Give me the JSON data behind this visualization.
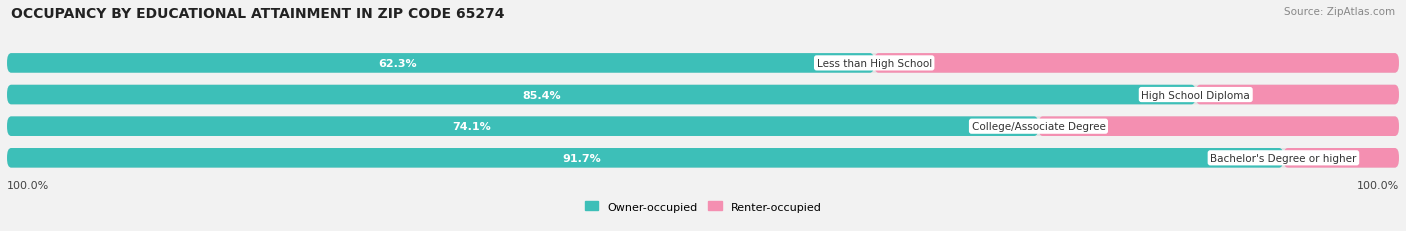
{
  "title": "OCCUPANCY BY EDUCATIONAL ATTAINMENT IN ZIP CODE 65274",
  "source": "Source: ZipAtlas.com",
  "categories": [
    "Less than High School",
    "High School Diploma",
    "College/Associate Degree",
    "Bachelor's Degree or higher"
  ],
  "owner_values": [
    62.3,
    85.4,
    74.1,
    91.7
  ],
  "renter_values": [
    37.7,
    14.6,
    25.9,
    8.3
  ],
  "owner_color": "#3DBFB8",
  "renter_color": "#F48FB1",
  "background_color": "#f2f2f2",
  "bar_bg_color": "#e2e2e2",
  "axis_label": "100.0%",
  "owner_label": "Owner-occupied",
  "renter_label": "Renter-occupied",
  "title_fontsize": 10,
  "source_fontsize": 7.5,
  "label_fontsize": 8,
  "bar_height": 0.62,
  "figsize": [
    14.06,
    2.32
  ],
  "dpi": 100
}
